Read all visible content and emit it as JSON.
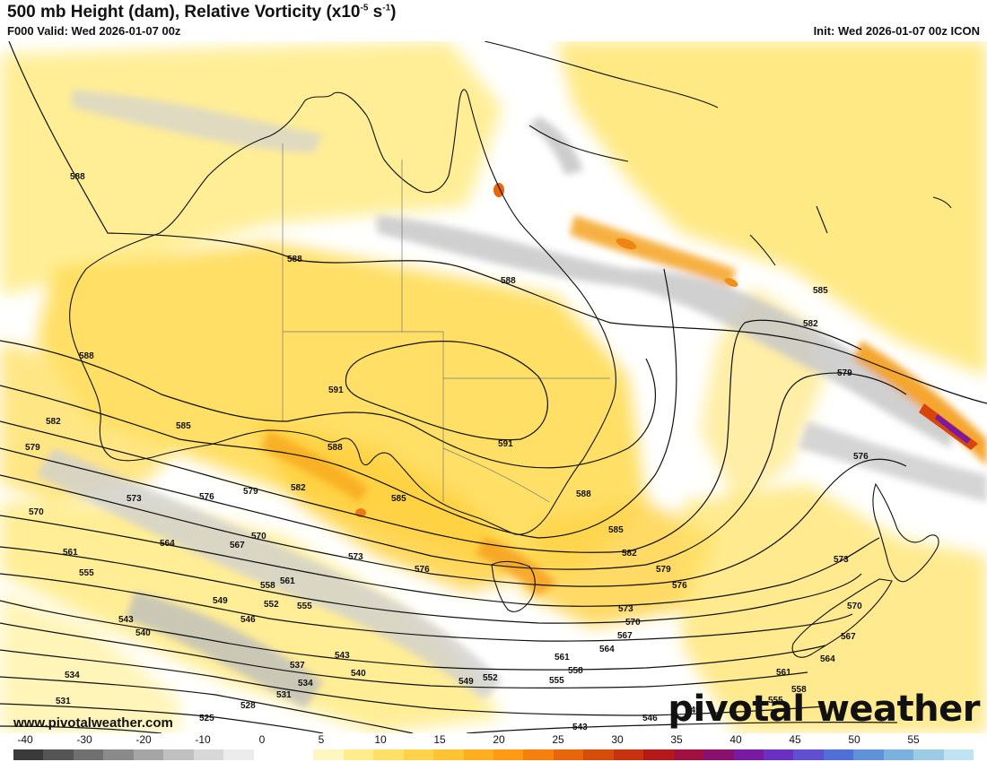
{
  "header": {
    "title_main": "500 mb Height (dam), Relative Vorticity (x10",
    "title_exp": "-5",
    "title_mid": " s",
    "title_exp2": "-1",
    "title_end": ")",
    "valid": "F000 Valid: Wed 2026-01-07 00z",
    "init": "Init: Wed 2026-01-07 00z ICON"
  },
  "footer": {
    "website": "www.pivotalweather.com",
    "logo": "pivotal weather"
  },
  "colorbar": {
    "labels": [
      "-40",
      "-30",
      "-20",
      "-10",
      "0",
      "5",
      "10",
      "15",
      "20",
      "25",
      "30",
      "35",
      "40",
      "45",
      "50",
      "55"
    ],
    "colors": [
      "#3a3a3a",
      "#555555",
      "#707070",
      "#8a8a8a",
      "#a5a5a5",
      "#c0c0c0",
      "#d8d8d8",
      "#ececec",
      "#ffffff",
      "#ffffff",
      "#fff6c0",
      "#ffec8a",
      "#ffe066",
      "#ffd24a",
      "#ffc233",
      "#ffae1f",
      "#ff9a14",
      "#f5800e",
      "#e8650a",
      "#d64c0a",
      "#c7330e",
      "#b51a1a",
      "#a01040",
      "#8a1070",
      "#7a1aa0",
      "#6a30c0",
      "#6050d0",
      "#5070d8",
      "#5f92d8",
      "#7cb0de",
      "#9ccbe6",
      "#bfe4f0"
    ]
  },
  "map": {
    "contour_labels": [
      "588",
      "588",
      "588",
      "588",
      "591",
      "591",
      "588",
      "585",
      "582",
      "579",
      "576",
      "573",
      "570",
      "561",
      "555",
      "549",
      "543",
      "540",
      "534",
      "531",
      "528",
      "525",
      "585",
      "582",
      "579",
      "576",
      "573",
      "570",
      "567",
      "564",
      "561",
      "558",
      "555",
      "552",
      "549",
      "546",
      "543",
      "540",
      "537",
      "534",
      "531",
      "585",
      "588",
      "582",
      "579",
      "576",
      "573",
      "570",
      "567",
      "564",
      "561",
      "558",
      "555",
      "552",
      "549",
      "546",
      "543",
      "585",
      "582",
      "579",
      "576",
      "573",
      "570",
      "567",
      "564",
      "561",
      "558",
      "555"
    ]
  }
}
